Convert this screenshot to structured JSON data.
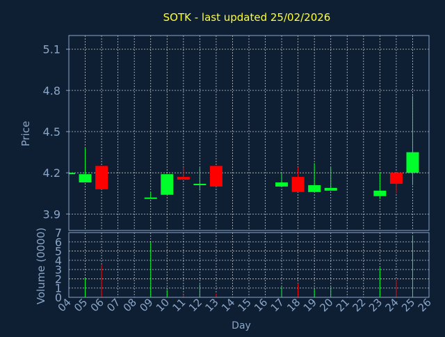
{
  "colors": {
    "background": "#0f1f33",
    "title": "#ffff33",
    "axis_text": "#8aa6c8",
    "grid": "#ffffff",
    "frame": "#8aa6c8",
    "up": "#00ff2a",
    "down": "#ff0000"
  },
  "chart_data": [
    {
      "type": "candlestick",
      "title": "SOTK - last updated 25/02/2026",
      "ylabel": "Price",
      "ylim": [
        3.78,
        5.2
      ],
      "yticks": [
        "5.1",
        "4.8",
        "4.5",
        "4.2",
        "3.9"
      ],
      "candles": [
        {
          "day": "04",
          "open": 4.2,
          "close": 4.2,
          "high": 4.2,
          "low": 4.2
        },
        {
          "day": "05",
          "open": 4.13,
          "close": 4.19,
          "high": 4.38,
          "low": 4.13
        },
        {
          "day": "06",
          "open": 4.25,
          "close": 4.08,
          "high": 4.25,
          "low": 4.08
        },
        {
          "day": "09",
          "open": 4.02,
          "close": 4.02,
          "high": 4.06,
          "low": 4.02
        },
        {
          "day": "10",
          "open": 4.04,
          "close": 4.19,
          "high": 4.19,
          "low": 4.04
        },
        {
          "day": "11",
          "open": 4.17,
          "close": 4.15,
          "high": 4.24,
          "low": 4.15
        },
        {
          "day": "12",
          "open": 4.11,
          "close": 4.12,
          "high": 4.24,
          "low": 4.07
        },
        {
          "day": "13",
          "open": 4.25,
          "close": 4.1,
          "high": 4.25,
          "low": 4.1
        },
        {
          "day": "17",
          "open": 4.1,
          "close": 4.13,
          "high": 4.2,
          "low": 4.1
        },
        {
          "day": "18",
          "open": 4.17,
          "close": 4.06,
          "high": 4.24,
          "low": 4.06
        },
        {
          "day": "19",
          "open": 4.06,
          "close": 4.11,
          "high": 4.27,
          "low": 4.06
        },
        {
          "day": "20",
          "open": 4.07,
          "close": 4.09,
          "high": 4.24,
          "low": 4.07
        },
        {
          "day": "23",
          "open": 4.03,
          "close": 4.07,
          "high": 4.2,
          "low": 4.01
        },
        {
          "day": "24",
          "open": 4.2,
          "close": 4.12,
          "high": 4.2,
          "low": 4.05
        },
        {
          "day": "25",
          "open": 4.2,
          "close": 4.35,
          "high": 4.76,
          "low": 4.11
        }
      ]
    },
    {
      "type": "bar",
      "ylabel": "Volume (0000)",
      "xlabel": "Day",
      "ylim": [
        0,
        7
      ],
      "yticks": [
        "7",
        "6",
        "5",
        "4",
        "3",
        "2",
        "1",
        "0"
      ],
      "categories": [
        "04",
        "05",
        "06",
        "07",
        "08",
        "09",
        "10",
        "11",
        "12",
        "13",
        "14",
        "15",
        "16",
        "17",
        "18",
        "19",
        "20",
        "21",
        "22",
        "23",
        "24",
        "25",
        "26"
      ],
      "volumes": [
        {
          "day": "05",
          "value": 2.1,
          "direction": "up"
        },
        {
          "day": "06",
          "value": 3.5,
          "direction": "down"
        },
        {
          "day": "09",
          "value": 6.0,
          "direction": "up"
        },
        {
          "day": "10",
          "value": 0.8,
          "direction": "up"
        },
        {
          "day": "11",
          "value": 0.3,
          "direction": "down"
        },
        {
          "day": "12",
          "value": 1.4,
          "direction": "up"
        },
        {
          "day": "13",
          "value": 0.4,
          "direction": "down"
        },
        {
          "day": "17",
          "value": 1.1,
          "direction": "up"
        },
        {
          "day": "18",
          "value": 1.5,
          "direction": "down"
        },
        {
          "day": "19",
          "value": 0.9,
          "direction": "up"
        },
        {
          "day": "20",
          "value": 1.1,
          "direction": "up"
        },
        {
          "day": "23",
          "value": 3.2,
          "direction": "up"
        },
        {
          "day": "24",
          "value": 1.9,
          "direction": "down"
        },
        {
          "day": "25",
          "value": 6.7,
          "direction": "up"
        }
      ]
    }
  ]
}
